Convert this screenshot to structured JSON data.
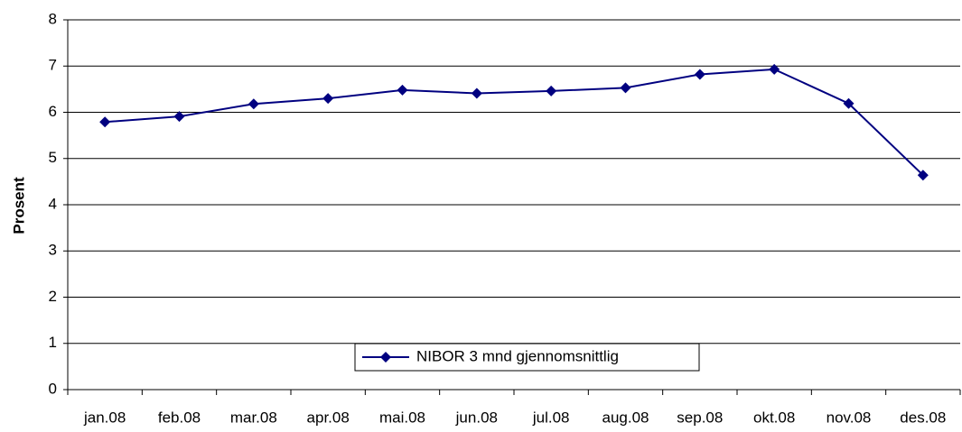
{
  "chart_data": {
    "type": "line",
    "y_label": "Prosent",
    "categories": [
      "jan.08",
      "feb.08",
      "mar.08",
      "apr.08",
      "mai.08",
      "jun.08",
      "jul.08",
      "aug.08",
      "sep.08",
      "okt.08",
      "nov.08",
      "des.08"
    ],
    "series": [
      {
        "name": "NIBOR 3 mnd gjennomsnittlig",
        "color": "#000080",
        "values": [
          5.79,
          5.91,
          6.18,
          6.3,
          6.48,
          6.41,
          6.46,
          6.53,
          6.82,
          6.93,
          6.19,
          4.64
        ]
      }
    ],
    "ylim": [
      0,
      8
    ],
    "yticks": [
      0,
      1,
      2,
      3,
      4,
      5,
      6,
      7,
      8
    ],
    "grid": true,
    "legend": "bottom"
  }
}
